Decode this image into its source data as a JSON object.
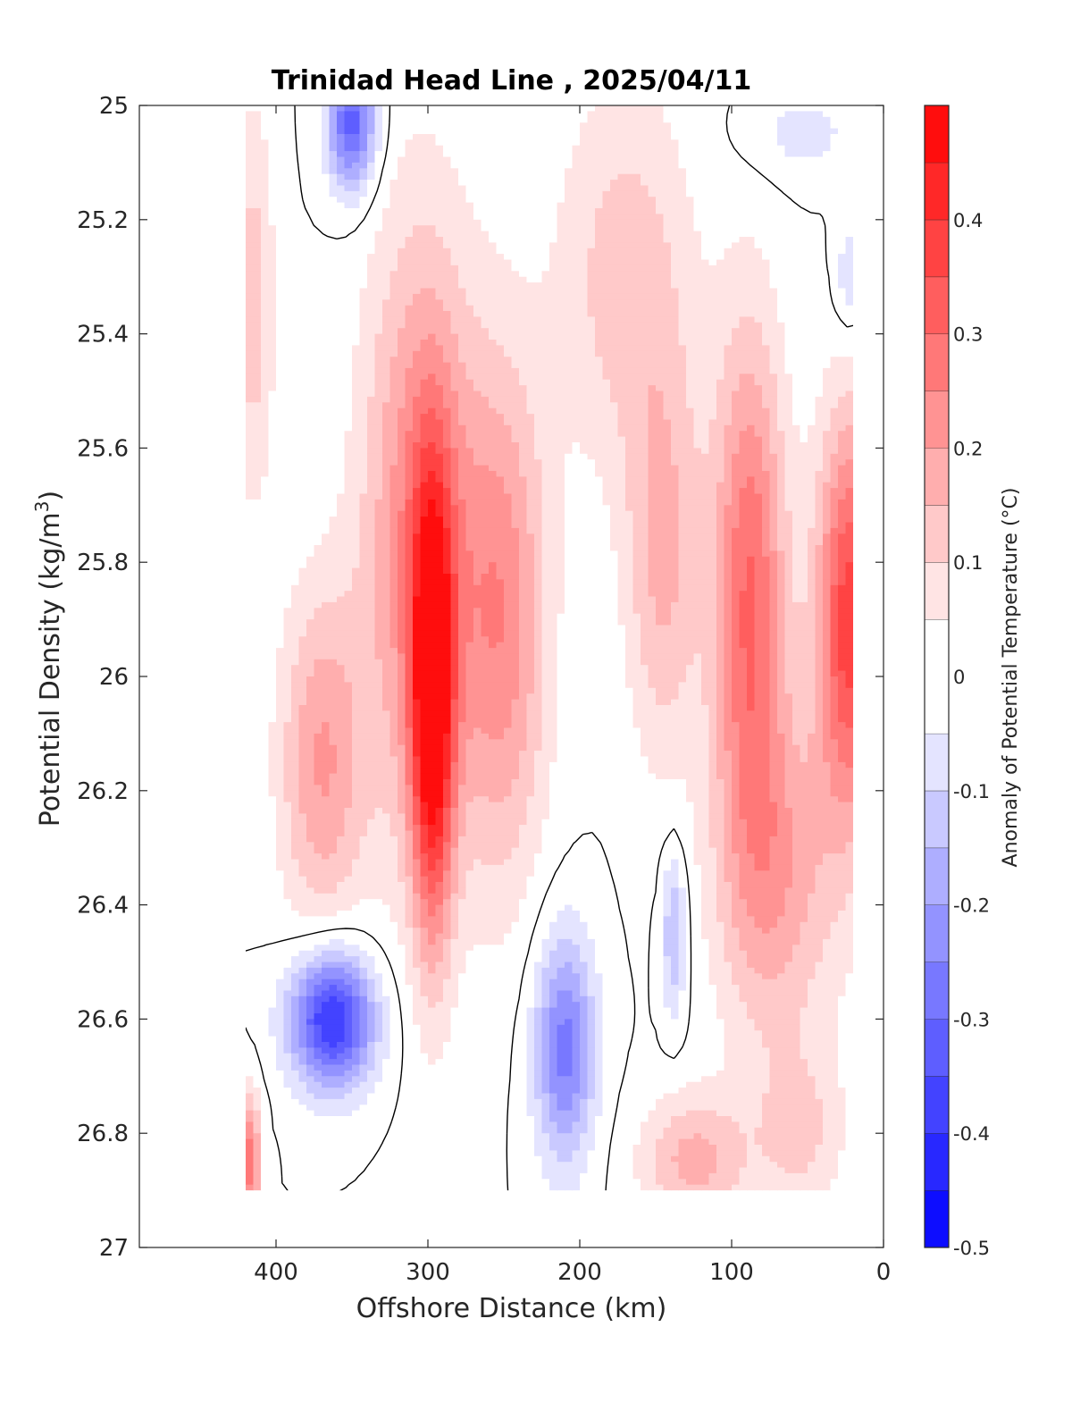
{
  "chart_data": {
    "type": "contour",
    "title": "Trinidad Head Line , 2025/04/11",
    "xlabel": "Offshore Distance (km)",
    "ylabel": "Potential Density (kg/m",
    "ylabel_sup": "3",
    "ylabel_suffix": ")",
    "colorbar_label": "Anomaly of Potential Temperature (°C)",
    "xlim": [
      490,
      0
    ],
    "ylim": [
      25,
      27
    ],
    "x_reversed": true,
    "y_reversed": true,
    "xticks": [
      400,
      300,
      200,
      100,
      0
    ],
    "xtick_labels": [
      "400",
      "300",
      "200",
      "100",
      "0"
    ],
    "yticks": [
      25,
      25.2,
      25.4,
      25.6,
      25.8,
      26,
      26.2,
      26.4,
      26.6,
      26.8,
      27
    ],
    "ytick_labels": [
      "25",
      "25.2",
      "25.4",
      "25.6",
      "25.8",
      "26",
      "26.2",
      "26.4",
      "26.6",
      "26.8",
      "27"
    ],
    "clim": [
      -0.5,
      0.5
    ],
    "cbar_ticks": [
      0.4,
      0.3,
      0.2,
      0.1,
      0,
      -0.1,
      -0.2,
      -0.3,
      -0.4,
      -0.5
    ],
    "cbar_tick_labels": [
      "0.4",
      "0.3",
      "0.2",
      "0.1",
      "0",
      "-0.1",
      "-0.2",
      "-0.3",
      "-0.4",
      "-0.5"
    ],
    "contour_levels": [
      -0.5,
      -0.45,
      -0.4,
      -0.35,
      -0.3,
      -0.25,
      -0.2,
      -0.15,
      -0.1,
      -0.05,
      0.05,
      0.1,
      0.15,
      0.2,
      0.25,
      0.3,
      0.35,
      0.4,
      0.45,
      0.5
    ],
    "zero_contour": "black line at anomaly = 0",
    "data_extent": {
      "x": [
        420,
        20
      ],
      "y": [
        25.0,
        26.9
      ]
    },
    "colormap": {
      "negative": "#0000ff",
      "zero": "#ffffff",
      "positive": "#ff0000"
    },
    "features": [
      {
        "name": "warm-core-300km",
        "x": 297,
        "y": 26.05,
        "value": 0.45,
        "sx": 14,
        "sy": 0.4
      },
      {
        "name": "warm-band-300km",
        "x": 305,
        "y": 25.75,
        "value": 0.25,
        "sx": 38,
        "sy": 0.55
      },
      {
        "name": "warm-250km",
        "x": 250,
        "y": 25.9,
        "value": 0.22,
        "sx": 30,
        "sy": 0.45
      },
      {
        "name": "warm-shallow-180km",
        "x": 170,
        "y": 25.3,
        "value": 0.13,
        "sx": 45,
        "sy": 0.35
      },
      {
        "name": "warm-150km",
        "x": 145,
        "y": 25.8,
        "value": 0.16,
        "sx": 25,
        "sy": 0.35
      },
      {
        "name": "warm-core-90km",
        "x": 88,
        "y": 25.85,
        "value": 0.3,
        "sx": 24,
        "sy": 0.45
      },
      {
        "name": "warm-core-20km",
        "x": 22,
        "y": 25.9,
        "value": 0.38,
        "sx": 22,
        "sy": 0.35
      },
      {
        "name": "warm-100km-deep",
        "x": 70,
        "y": 26.35,
        "value": 0.18,
        "sx": 40,
        "sy": 0.3
      },
      {
        "name": "warm-370km",
        "x": 370,
        "y": 26.15,
        "value": 0.2,
        "sx": 28,
        "sy": 0.3
      },
      {
        "name": "warm-410km",
        "x": 415,
        "y": 25.35,
        "value": 0.13,
        "sx": 14,
        "sy": 0.35
      },
      {
        "name": "warm-420km-deep",
        "x": 418,
        "y": 26.85,
        "value": 0.28,
        "sx": 8,
        "sy": 0.12
      },
      {
        "name": "warm-130km-deep",
        "x": 125,
        "y": 26.85,
        "value": 0.17,
        "sx": 35,
        "sy": 0.12
      },
      {
        "name": "warm-60km-deep",
        "x": 55,
        "y": 26.8,
        "value": 0.11,
        "sx": 30,
        "sy": 0.15
      },
      {
        "name": "cool-350km-shallow",
        "x": 350,
        "y": 25.03,
        "value": -0.33,
        "sx": 16,
        "sy": 0.12
      },
      {
        "name": "cool-360km-deep",
        "x": 363,
        "y": 26.6,
        "value": -0.42,
        "sx": 28,
        "sy": 0.12
      },
      {
        "name": "cool-210km-deep",
        "x": 210,
        "y": 26.65,
        "value": -0.27,
        "sx": 20,
        "sy": 0.2
      },
      {
        "name": "cool-140km",
        "x": 138,
        "y": 26.45,
        "value": -0.16,
        "sx": 8,
        "sy": 0.15
      },
      {
        "name": "cool-60km-shallow",
        "x": 55,
        "y": 25.05,
        "value": -0.07,
        "sx": 40,
        "sy": 0.08
      },
      {
        "name": "cool-20km-shallow",
        "x": 22,
        "y": 25.3,
        "value": -0.1,
        "sx": 10,
        "sy": 0.1
      }
    ]
  }
}
